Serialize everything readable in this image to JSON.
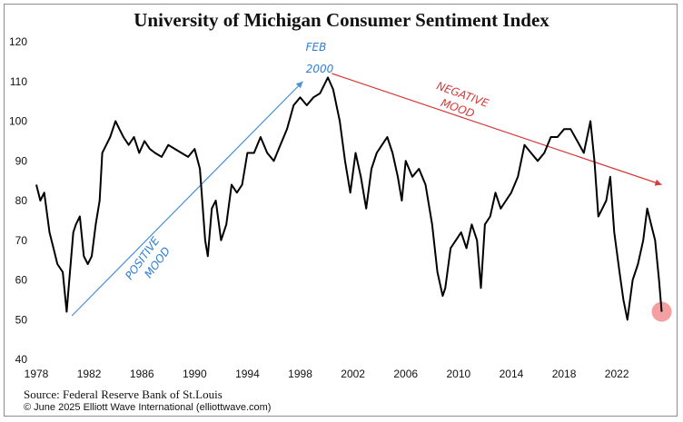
{
  "title": "University of Michigan Consumer Sentiment Index",
  "source": "Source: Federal Reserve Bank of St.Louis",
  "copyright": "© June 2025 Elliott Wave International (elliottwave.com)",
  "annotations": {
    "peak_line1": "FEB",
    "peak_line2": "2000",
    "positive_line1": "POSITIVE",
    "positive_line2": "MOOD",
    "negative_line1": "NEGATIVE",
    "negative_line2": "MOOD"
  },
  "colors": {
    "line": "#000000",
    "positive_arrow": "#4a8fd8",
    "negative_arrow": "#d63a3a",
    "highlight": "#f08080"
  },
  "chart_data": {
    "type": "line",
    "title": "University of Michigan Consumer Sentiment Index",
    "xlabel": "",
    "ylabel": "",
    "xlim": [
      1978,
      2025.5
    ],
    "ylim": [
      40,
      120
    ],
    "yticks": [
      40,
      50,
      60,
      70,
      80,
      90,
      100,
      110,
      120
    ],
    "xticks": [
      1978,
      1982,
      1986,
      1990,
      1994,
      1998,
      2002,
      2006,
      2010,
      2014,
      2018,
      2022
    ],
    "grid": false,
    "series": [
      {
        "name": "",
        "x": [
          1978.0,
          1978.3,
          1978.6,
          1979.0,
          1979.3,
          1979.6,
          1980.0,
          1980.3,
          1980.5,
          1980.8,
          1981.0,
          1981.3,
          1981.6,
          1981.9,
          1982.2,
          1982.5,
          1982.8,
          1983.0,
          1983.3,
          1983.6,
          1984.0,
          1984.3,
          1984.6,
          1985.0,
          1985.4,
          1985.8,
          1986.2,
          1986.6,
          1987.0,
          1987.5,
          1988.0,
          1988.5,
          1989.0,
          1989.5,
          1990.0,
          1990.4,
          1990.8,
          1991.0,
          1991.3,
          1991.6,
          1992.0,
          1992.4,
          1992.8,
          1993.2,
          1993.6,
          1994.0,
          1994.5,
          1995.0,
          1995.5,
          1996.0,
          1996.5,
          1997.0,
          1997.5,
          1998.0,
          1998.5,
          1999.0,
          1999.5,
          2000.1,
          2000.5,
          2001.0,
          2001.4,
          2001.8,
          2002.2,
          2002.6,
          2003.0,
          2003.4,
          2003.8,
          2004.2,
          2004.6,
          2005.0,
          2005.4,
          2005.7,
          2006.0,
          2006.5,
          2007.0,
          2007.5,
          2008.0,
          2008.4,
          2008.8,
          2009.0,
          2009.4,
          2009.8,
          2010.2,
          2010.6,
          2011.0,
          2011.4,
          2011.7,
          2012.0,
          2012.4,
          2012.8,
          2013.2,
          2013.6,
          2014.0,
          2014.5,
          2015.0,
          2015.5,
          2016.0,
          2016.5,
          2017.0,
          2017.5,
          2018.0,
          2018.5,
          2019.0,
          2019.5,
          2020.0,
          2020.3,
          2020.6,
          2020.9,
          2021.2,
          2021.5,
          2021.8,
          2022.2,
          2022.5,
          2022.8,
          2023.2,
          2023.6,
          2024.0,
          2024.3,
          2024.6,
          2024.9,
          2025.2,
          2025.4
        ],
        "values": [
          84,
          80,
          82,
          72,
          68,
          64,
          62,
          52,
          60,
          72,
          74,
          76,
          66,
          64,
          66,
          74,
          80,
          92,
          94,
          96,
          100,
          98,
          96,
          94,
          96,
          92,
          95,
          93,
          92,
          91,
          94,
          93,
          92,
          91,
          93,
          88,
          70,
          66,
          78,
          80,
          70,
          74,
          84,
          82,
          84,
          92,
          92,
          96,
          92,
          90,
          94,
          98,
          104,
          106,
          104,
          106,
          107,
          111,
          108,
          100,
          90,
          82,
          92,
          86,
          78,
          88,
          92,
          94,
          96,
          92,
          86,
          80,
          90,
          86,
          88,
          84,
          74,
          62,
          56,
          58,
          68,
          70,
          72,
          68,
          74,
          70,
          58,
          74,
          76,
          82,
          78,
          80,
          82,
          86,
          94,
          92,
          90,
          92,
          96,
          96,
          98,
          98,
          95,
          92,
          100,
          90,
          76,
          78,
          80,
          86,
          72,
          62,
          55,
          50,
          60,
          64,
          70,
          78,
          74,
          70,
          60,
          52
        ]
      }
    ]
  }
}
